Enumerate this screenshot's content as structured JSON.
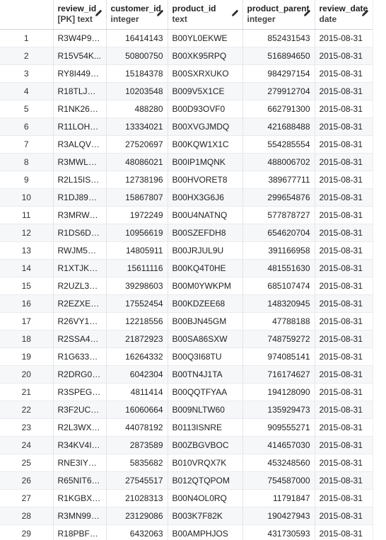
{
  "columns": [
    {
      "name": "review_id",
      "type": "[PK] text"
    },
    {
      "name": "customer_id",
      "type": "integer"
    },
    {
      "name": "product_id",
      "type": "text"
    },
    {
      "name": "product_parent",
      "type": "integer"
    },
    {
      "name": "review_date",
      "type": "date"
    }
  ],
  "rows": [
    [
      "1",
      "R3W4P9U...",
      "16414143",
      "B00YL0EKWE",
      "852431543",
      "2015-08-31"
    ],
    [
      "2",
      "R15V54K...",
      "50800750",
      "B00XK95RPQ",
      "516894650",
      "2015-08-31"
    ],
    [
      "3",
      "RY8I449H...",
      "15184378",
      "B00SXRXUKO",
      "984297154",
      "2015-08-31"
    ],
    [
      "4",
      "R18TLJYC...",
      "10203548",
      "B009V5X1CE",
      "279912704",
      "2015-08-31"
    ],
    [
      "5",
      "R1NK26S...",
      "488280",
      "B00D93OVF0",
      "662791300",
      "2015-08-31"
    ],
    [
      "6",
      "R11LOHE...",
      "13334021",
      "B00XVGJMDQ",
      "421688488",
      "2015-08-31"
    ],
    [
      "7",
      "R3ALQVQ...",
      "27520697",
      "B00KQW1X1C",
      "554285554",
      "2015-08-31"
    ],
    [
      "8",
      "R3MWLXL...",
      "48086021",
      "B00IP1MQNK",
      "488006702",
      "2015-08-31"
    ],
    [
      "9",
      "R2L15IS2...",
      "12738196",
      "B00HVORET8",
      "389677711",
      "2015-08-31"
    ],
    [
      "10",
      "R1DJ8976...",
      "15867807",
      "B00HX3G6J6",
      "299654876",
      "2015-08-31"
    ],
    [
      "11",
      "R3MRWN...",
      "1972249",
      "B00U4NATNQ",
      "577878727",
      "2015-08-31"
    ],
    [
      "12",
      "R1DS6DK...",
      "10956619",
      "B00SZEFDH8",
      "654620704",
      "2015-08-31"
    ],
    [
      "13",
      "RWJM5E0...",
      "14805911",
      "B00JRJUL9U",
      "391166958",
      "2015-08-31"
    ],
    [
      "14",
      "R1XTJKD...",
      "15611116",
      "B00KQ4T0HE",
      "481551630",
      "2015-08-31"
    ],
    [
      "15",
      "R2UZL3D...",
      "39298603",
      "B00M0YWKPM",
      "685107474",
      "2015-08-31"
    ],
    [
      "16",
      "R2EZXET...",
      "17552454",
      "B00KDZEE68",
      "148320945",
      "2015-08-31"
    ],
    [
      "17",
      "R26VY1L1...",
      "12218556",
      "B00BJN45GM",
      "47788188",
      "2015-08-31"
    ],
    [
      "18",
      "R2SSA4N...",
      "21872923",
      "B00SA86SXW",
      "748759272",
      "2015-08-31"
    ],
    [
      "19",
      "R1G6333J...",
      "16264332",
      "B00Q3I68TU",
      "974085141",
      "2015-08-31"
    ],
    [
      "20",
      "R2DRG0U...",
      "6042304",
      "B00TN4J1TA",
      "716174627",
      "2015-08-31"
    ],
    [
      "21",
      "R3SPEGY...",
      "4811414",
      "B00QQTFYAA",
      "194128090",
      "2015-08-31"
    ],
    [
      "22",
      "R3F2UCQ...",
      "16060664",
      "B009NLTW60",
      "135929473",
      "2015-08-31"
    ],
    [
      "23",
      "R2L3WX7...",
      "44078192",
      "B0113ISNRE",
      "909555271",
      "2015-08-31"
    ],
    [
      "24",
      "R34KV4IE...",
      "2873589",
      "B00ZBGVBOC",
      "414657030",
      "2015-08-31"
    ],
    [
      "25",
      "RNE3IY22...",
      "5835682",
      "B010VRQX7K",
      "453248560",
      "2015-08-31"
    ],
    [
      "26",
      "R65NIT67...",
      "27545517",
      "B012QTQPOM",
      "754587000",
      "2015-08-31"
    ],
    [
      "27",
      "R1KGBXK...",
      "21028313",
      "B00N4OL0RQ",
      "11791847",
      "2015-08-31"
    ],
    [
      "28",
      "R3MN996...",
      "23129086",
      "B003K7F82K",
      "190427943",
      "2015-08-31"
    ],
    [
      "29",
      "R18PBFR...",
      "6432063",
      "B00AMPHJOS",
      "431730593",
      "2015-08-31"
    ]
  ]
}
